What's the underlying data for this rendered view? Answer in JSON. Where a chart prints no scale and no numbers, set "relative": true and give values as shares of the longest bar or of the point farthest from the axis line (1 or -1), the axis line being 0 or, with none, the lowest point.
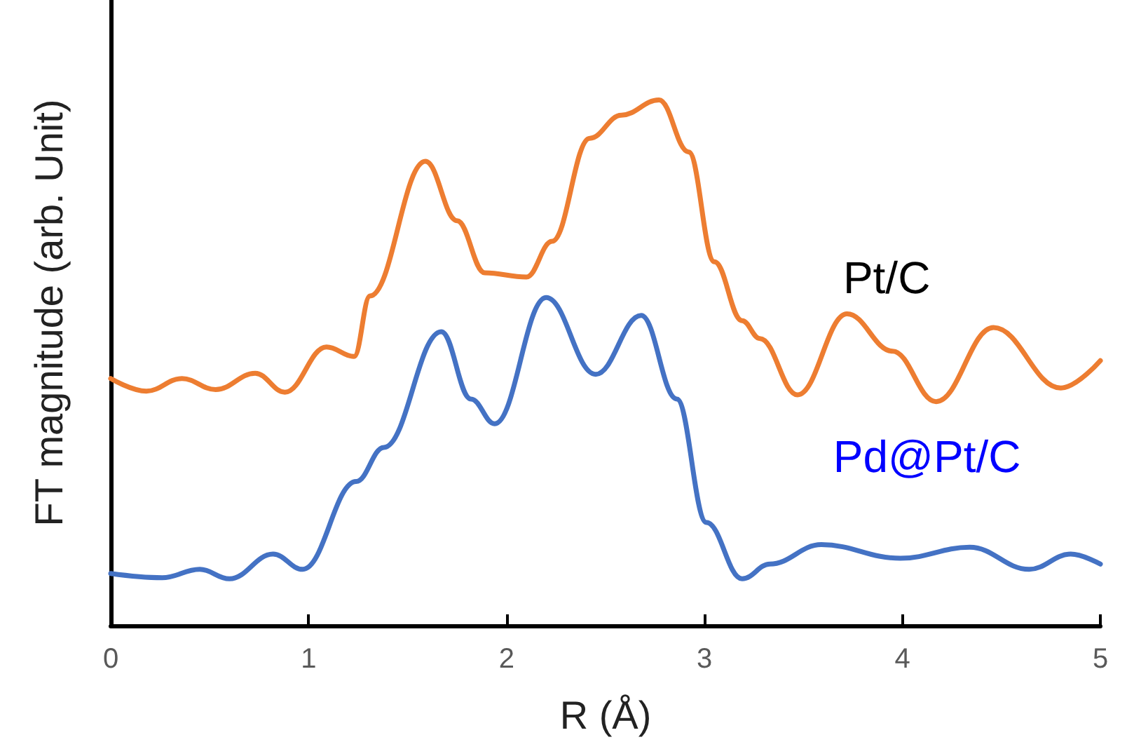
{
  "chart_data": {
    "type": "line",
    "relative": true,
    "xlabel": "R (Å)",
    "ylabel": "FT magnitude (arb. Unit)",
    "xlim": [
      0,
      5
    ],
    "xticks": [
      0,
      1,
      2,
      3,
      4,
      5
    ],
    "grid": false,
    "legend": false,
    "marker": "none",
    "line_style": "solid",
    "series": [
      {
        "name": "Pt/C",
        "color": "#ed7d31",
        "x": [
          0,
          0.18,
          0.36,
          0.53,
          0.73,
          0.88,
          1.09,
          1.23,
          1.31,
          1.59,
          1.75,
          1.89,
          2.1,
          2.23,
          2.42,
          2.58,
          2.77,
          2.92,
          3.05,
          3.19,
          3.28,
          3.47,
          3.72,
          3.95,
          4.17,
          4.46,
          4.8,
          5.0
        ],
        "values": [
          0.47,
          0.446,
          0.47,
          0.449,
          0.48,
          0.444,
          0.53,
          0.512,
          0.627,
          0.883,
          0.77,
          0.671,
          0.663,
          0.731,
          0.927,
          0.971,
          1.0,
          0.901,
          0.692,
          0.58,
          0.546,
          0.439,
          0.593,
          0.522,
          0.426,
          0.567,
          0.452,
          0.504
        ]
      },
      {
        "name": "Pd@Pt/C",
        "color": "#4472c4",
        "x": [
          0,
          0.26,
          0.45,
          0.6,
          0.82,
          0.97,
          1.24,
          1.38,
          1.67,
          1.82,
          1.94,
          2.2,
          2.45,
          2.68,
          2.86,
          3.01,
          3.19,
          3.33,
          3.59,
          3.99,
          4.34,
          4.64,
          4.85,
          5.0
        ],
        "values": [
          0.099,
          0.091,
          0.107,
          0.089,
          0.136,
          0.107,
          0.274,
          0.339,
          0.559,
          0.431,
          0.384,
          0.624,
          0.478,
          0.59,
          0.431,
          0.196,
          0.089,
          0.117,
          0.154,
          0.128,
          0.149,
          0.107,
          0.136,
          0.117
        ]
      }
    ]
  }
}
